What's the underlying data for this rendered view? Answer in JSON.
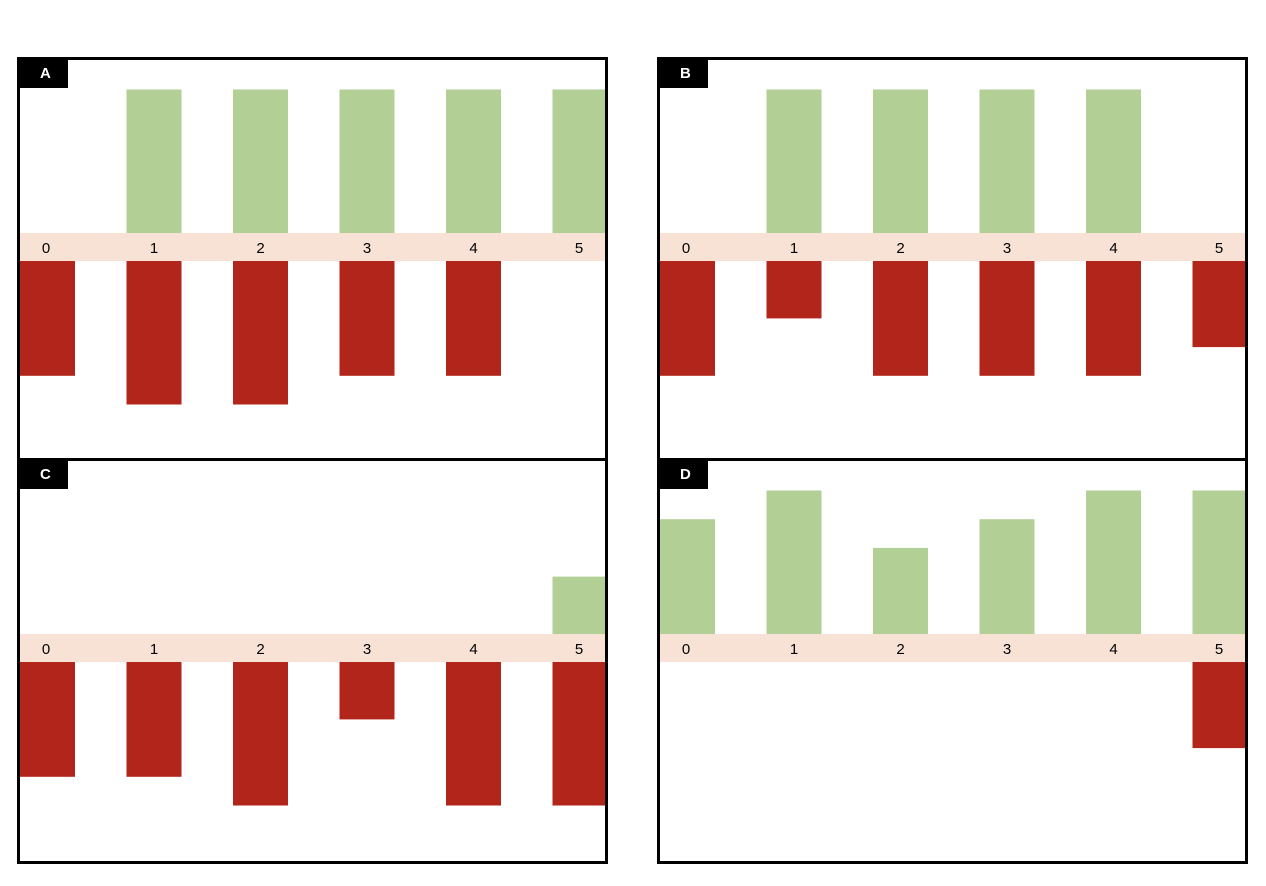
{
  "colors": {
    "positive": "#b2cf96",
    "negative": "#b2251a",
    "axis_band": "#f8e2d6",
    "border": "#000000"
  },
  "chart_data": [
    {
      "type": "bar",
      "panel_label": "A",
      "categories": [
        "0",
        "1",
        "2",
        "3",
        "4",
        "5"
      ],
      "series": [
        {
          "values": [
            0,
            5,
            5,
            5,
            5,
            5
          ]
        },
        {
          "values": [
            -4,
            -5,
            -5,
            -4,
            -4,
            0
          ]
        }
      ],
      "ylim": [
        -7,
        5
      ],
      "grid": false
    },
    {
      "type": "bar",
      "panel_label": "B",
      "categories": [
        "0",
        "1",
        "2",
        "3",
        "4",
        "5"
      ],
      "series": [
        {
          "values": [
            0,
            5,
            5,
            5,
            5,
            0
          ]
        },
        {
          "values": [
            -4,
            -2,
            -4,
            -4,
            -4,
            -3
          ]
        }
      ],
      "ylim": [
        -7,
        5
      ],
      "grid": false
    },
    {
      "type": "bar",
      "panel_label": "C",
      "categories": [
        "0",
        "1",
        "2",
        "3",
        "4",
        "5"
      ],
      "series": [
        {
          "values": [
            0,
            0,
            0,
            0,
            0,
            2
          ]
        },
        {
          "values": [
            -4,
            -4,
            -5,
            -2,
            -5,
            -5
          ]
        }
      ],
      "ylim": [
        -7,
        5
      ],
      "grid": false
    },
    {
      "type": "bar",
      "panel_label": "D",
      "categories": [
        "0",
        "1",
        "2",
        "3",
        "4",
        "5"
      ],
      "series": [
        {
          "values": [
            4,
            5,
            3,
            4,
            5,
            5
          ]
        },
        {
          "values": [
            0,
            0,
            0,
            0,
            0,
            -3
          ]
        }
      ],
      "ylim": [
        -7,
        5
      ],
      "grid": false
    }
  ]
}
